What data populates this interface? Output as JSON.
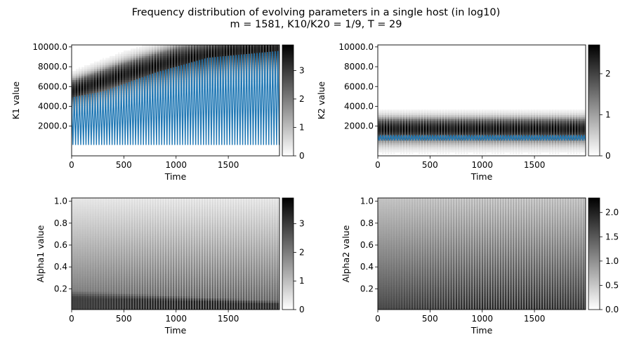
{
  "figure": {
    "title_line1": "Frequency distribution of evolving parameters in a single host (in log10)",
    "title_line2": "m = 1581, K10/K20 = 1/9, T = 29"
  },
  "colors": {
    "line": "#1f77b4",
    "axis": "#000000",
    "background": "#ffffff"
  },
  "chart_data": [
    {
      "type": "heatmap",
      "title": "",
      "xlabel": "Time",
      "ylabel": "K1 value",
      "xlim": [
        0,
        1990
      ],
      "ylim": [
        -1000,
        10200
      ],
      "xticks": [
        0,
        500,
        1000,
        1500
      ],
      "yticks": [
        2000,
        4000,
        6000,
        8000,
        10000
      ],
      "ytick_labels": [
        "2000.0",
        "4000.0",
        "6000.0",
        "8000.0",
        "10000.0"
      ],
      "colorbar": {
        "range": [
          0,
          3.9
        ],
        "ticks": [
          0,
          1,
          2,
          3
        ],
        "tick_labels": [
          "0",
          "1",
          "2",
          "3"
        ]
      },
      "band": {
        "time": [
          0,
          500,
          1000,
          1500,
          1990
        ],
        "center": [
          5500,
          7200,
          8600,
          9500,
          9800
        ],
        "width": [
          1600,
          1800,
          2000,
          2000,
          2000
        ]
      },
      "line_series": {
        "period": 25,
        "min": 100,
        "max_at_time": {
          "time": [
            0,
            300,
            800,
            1300,
            1990
          ],
          "value": [
            4900,
            5500,
            7400,
            8900,
            9600
          ]
        }
      },
      "background_fade": {
        "low_value_min": 0.0,
        "high_value_max": 0.0
      }
    },
    {
      "type": "heatmap",
      "title": "",
      "xlabel": "Time",
      "ylabel": "K2 value",
      "xlim": [
        0,
        1990
      ],
      "ylim": [
        -1000,
        10200
      ],
      "xticks": [
        0,
        500,
        1000,
        1500
      ],
      "yticks": [
        2000,
        4000,
        6000,
        8000,
        10000
      ],
      "ytick_labels": [
        "2000.0",
        "4000.0",
        "6000.0",
        "8000.0",
        "10000.0"
      ],
      "colorbar": {
        "range": [
          0,
          2.7
        ],
        "ticks": [
          0,
          1,
          2
        ],
        "tick_labels": [
          "0",
          "1",
          "2"
        ]
      },
      "band": {
        "time": [
          0,
          1990
        ],
        "center": [
          1700,
          1700
        ],
        "width": [
          1500,
          1500
        ]
      },
      "line_series": {
        "period": 25,
        "min": 550,
        "max_at_time": {
          "time": [
            0,
            1990
          ],
          "value": [
            1100,
            1100
          ]
        }
      },
      "background_fade": {
        "low_value_min": 0.0,
        "high_value_max": 0.0
      }
    },
    {
      "type": "heatmap",
      "title": "",
      "xlabel": "Time",
      "ylabel": "Alpha1 value",
      "xlim": [
        0,
        1990
      ],
      "ylim": [
        0.01,
        1.03
      ],
      "xticks": [
        0,
        500,
        1000,
        1500
      ],
      "yticks": [
        0.2,
        0.4,
        0.6,
        0.8,
        1.0
      ],
      "ytick_labels": [
        "0.2",
        "0.4",
        "0.6",
        "0.8",
        "1.0"
      ],
      "colorbar": {
        "range": [
          0,
          3.9
        ],
        "ticks": [
          0,
          1,
          2,
          3
        ],
        "tick_labels": [
          "0",
          "1",
          "2",
          "3"
        ]
      },
      "gradient": {
        "top": 0.12,
        "bottom": 0.75,
        "bottom_band": {
          "time": [
            0,
            1990
          ],
          "edge": [
            0.2,
            0.1
          ],
          "value": 0.95
        }
      },
      "stripe_period": 25
    },
    {
      "type": "heatmap",
      "title": "",
      "xlabel": "Time",
      "ylabel": "Alpha2 value",
      "xlim": [
        0,
        1990
      ],
      "ylim": [
        0.01,
        1.03
      ],
      "xticks": [
        0,
        500,
        1000,
        1500
      ],
      "yticks": [
        0.2,
        0.4,
        0.6,
        0.8,
        1.0
      ],
      "ytick_labels": [
        "0.2",
        "0.4",
        "0.6",
        "0.8",
        "1.0"
      ],
      "colorbar": {
        "range": [
          0,
          2.3
        ],
        "ticks": [
          0,
          0.5,
          1,
          1.5,
          2
        ],
        "tick_labels": [
          "0.0",
          "0.5",
          "1.0",
          "1.5",
          "2.0"
        ]
      },
      "gradient": {
        "top": 0.3,
        "bottom": 0.92
      },
      "stripe_period": 25
    }
  ]
}
